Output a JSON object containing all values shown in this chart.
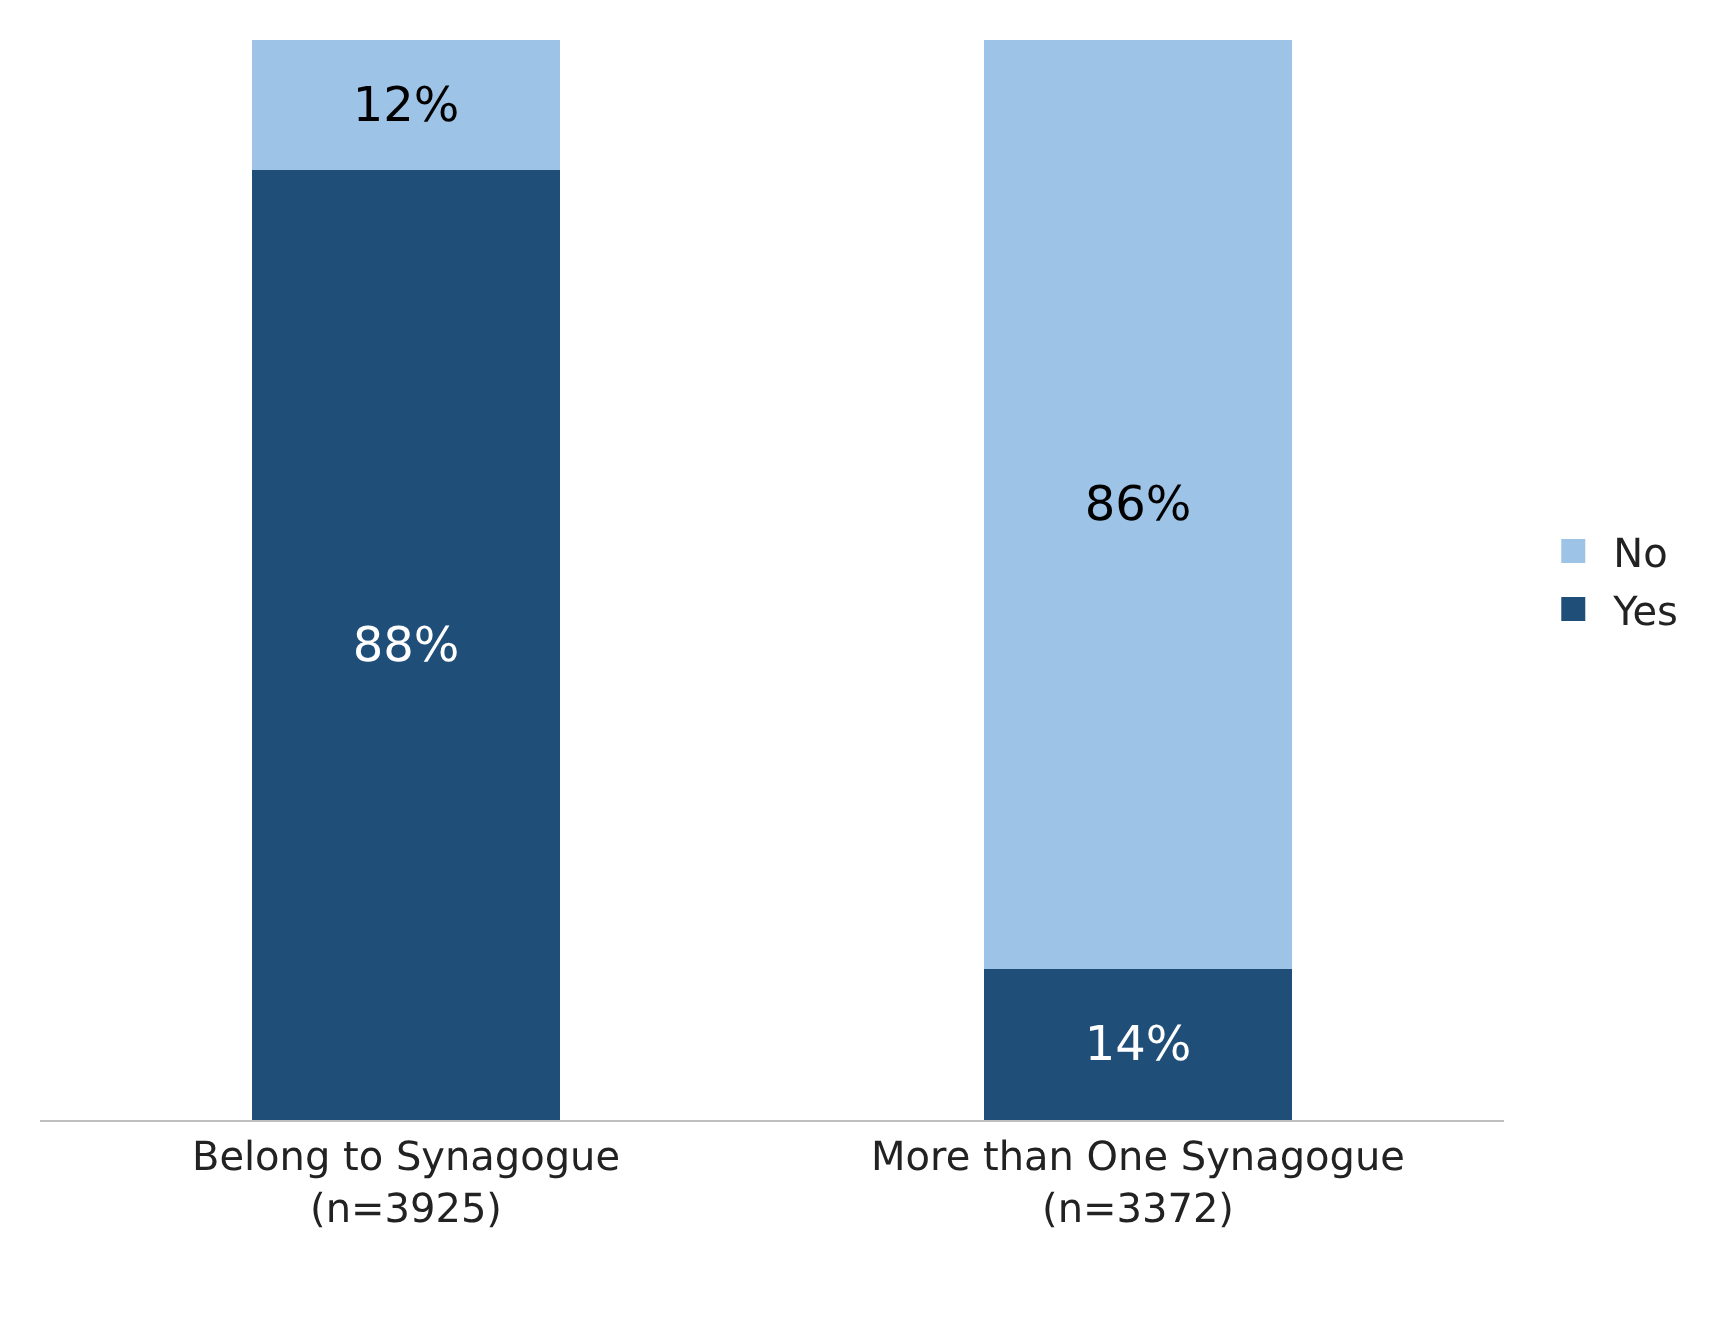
{
  "chart_data": {
    "type": "bar",
    "stacked": true,
    "categories": [
      "Belong to Synagogue\n(n=3925)",
      "More than One Synagogue\n(n=3372)"
    ],
    "series": [
      {
        "name": "Yes",
        "color": "#1f4e79",
        "values": [
          88,
          14
        ],
        "value_labels": [
          "88%",
          "14%"
        ]
      },
      {
        "name": "No",
        "color": "#9dc3e6",
        "values": [
          12,
          86
        ],
        "value_labels": [
          "12%",
          "86%"
        ]
      }
    ],
    "legend": "right"
  }
}
